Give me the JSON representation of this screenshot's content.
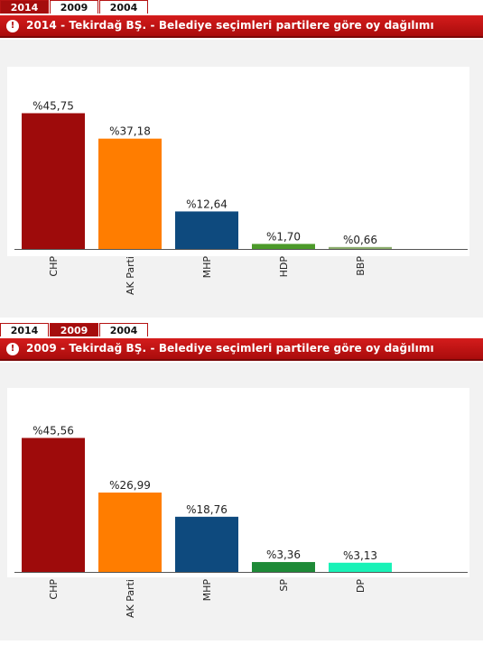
{
  "panels": [
    {
      "tabs": [
        "2014",
        "2009",
        "2004"
      ],
      "active_tab": "2014",
      "title": "2014 - Tekirdağ BŞ. - Belediye seçimleri partilere göre oy dağılımı",
      "icon": "info-circle-icon"
    },
    {
      "tabs": [
        "2014",
        "2009",
        "2004"
      ],
      "active_tab": "2009",
      "title": "2009 - Tekirdağ BŞ. - Belediye seçimleri partilere göre oy dağılımı",
      "icon": "info-circle-icon"
    }
  ],
  "chart_data": [
    {
      "type": "bar",
      "categories": [
        "CHP",
        "AK Parti",
        "MHP",
        "HDP",
        "BBP"
      ],
      "values": [
        45.75,
        37.18,
        12.64,
        1.7,
        0.66
      ],
      "data_labels": [
        "%45,75",
        "%37,18",
        "%12,64",
        "%1,70",
        "%0,66"
      ],
      "colors": [
        "#9e0b0b",
        "#ff7d00",
        "#0e4a7e",
        "#4c9a2a",
        "#8aab6b"
      ],
      "ylim": [
        0,
        50
      ],
      "grid": false
    },
    {
      "type": "bar",
      "categories": [
        "CHP",
        "AK Parti",
        "MHP",
        "SP",
        "DP"
      ],
      "values": [
        45.56,
        26.99,
        18.76,
        3.36,
        3.13
      ],
      "data_labels": [
        "%45,56",
        "%26,99",
        "%18,76",
        "%3,36",
        "%3,13"
      ],
      "colors": [
        "#9e0b0b",
        "#ff7d00",
        "#0e4a7e",
        "#1e8a37",
        "#19f2b7"
      ],
      "ylim": [
        0,
        50
      ],
      "grid": false
    }
  ]
}
